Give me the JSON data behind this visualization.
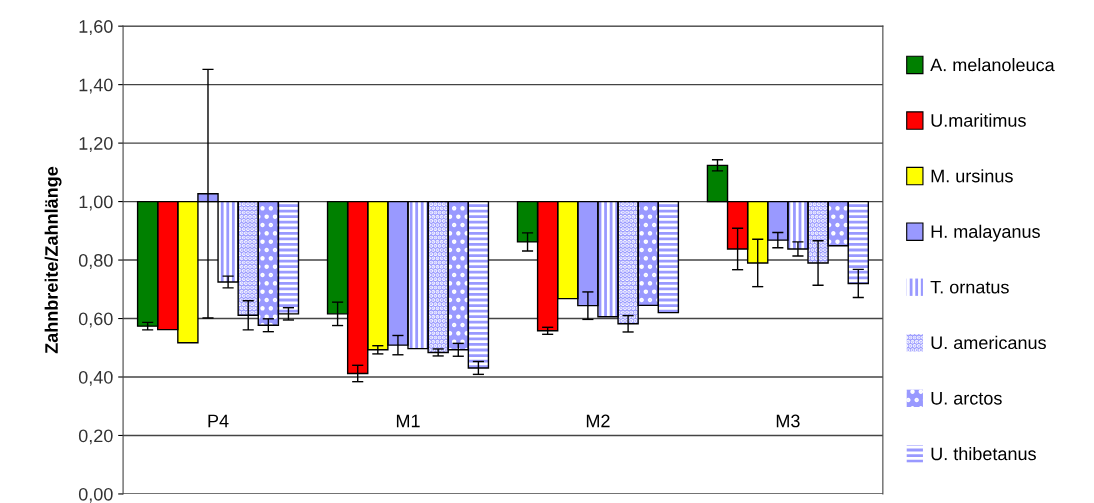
{
  "chart_data": {
    "type": "bar",
    "ylabel": "Zahnbreite/Zahnlänge",
    "categories": [
      "P4",
      "M1",
      "M2",
      "M3"
    ],
    "series": [
      {
        "name": "A. melanoleuca",
        "color": "#008000",
        "base": [
          1.0,
          1.0,
          1.0,
          1.0
        ],
        "values": [
          -0.426,
          -0.384,
          -0.138,
          0.124
        ],
        "errors": [
          0.013,
          0.04,
          0.031,
          0.019
        ]
      },
      {
        "name": "U.maritimus",
        "color": "#ff0000",
        "base": [
          1.0,
          1.0,
          1.0,
          1.0
        ],
        "values": [
          -0.438,
          -0.588,
          -0.442,
          -0.162
        ],
        "errors": [
          null,
          0.028,
          0.012,
          0.071
        ]
      },
      {
        "name": "M. ursinus",
        "color": "#ffff00",
        "base": [
          1.0,
          1.0,
          1.0,
          1.0
        ],
        "values": [
          -0.483,
          -0.507,
          -0.332,
          -0.21
        ],
        "errors": [
          null,
          0.014,
          null,
          0.081
        ]
      },
      {
        "name": "H. malayanus",
        "color": "#9999ff",
        "base": [
          1.0,
          1.0,
          1.0,
          1.0
        ],
        "values": [
          0.027,
          -0.491,
          -0.356,
          -0.132
        ],
        "errors": [
          0.425,
          0.033,
          0.047,
          0.026
        ]
      },
      {
        "name": "T. ornatus",
        "color": "#9999ff",
        "base": [
          1.0,
          1.0,
          1.0,
          1.0
        ],
        "values": [
          -0.275,
          -0.503,
          -0.394,
          -0.162
        ],
        "errors": [
          0.02,
          null,
          null,
          0.024
        ]
      },
      {
        "name": "U. americanus",
        "color": "#9999ff",
        "base": [
          1.0,
          1.0,
          1.0,
          1.0
        ],
        "values": [
          -0.389,
          -0.516,
          -0.418,
          -0.21
        ],
        "errors": [
          0.05,
          0.012,
          0.028,
          0.076
        ]
      },
      {
        "name": "U. arctos",
        "color": "#9999ff",
        "base": [
          1.0,
          1.0,
          1.0,
          1.0
        ],
        "values": [
          -0.423,
          -0.507,
          -0.355,
          -0.151
        ],
        "errors": [
          0.022,
          0.022,
          null,
          null
        ]
      },
      {
        "name": "U. thibetanus",
        "color": "#9999ff",
        "base": [
          1.0,
          1.0,
          1.0,
          1.0
        ],
        "values": [
          -0.384,
          -0.569,
          -0.38,
          -0.28
        ],
        "errors": [
          0.021,
          0.022,
          null,
          0.048
        ]
      }
    ],
    "ylim": [
      0.0,
      1.6
    ],
    "yticks": [
      {
        "value": 0.0,
        "label": "0,00"
      },
      {
        "value": 0.2,
        "label": "0,20"
      },
      {
        "value": 0.4,
        "label": "0,40"
      },
      {
        "value": 0.6,
        "label": "0,60"
      },
      {
        "value": 0.8,
        "label": "0,80"
      },
      {
        "value": 1.0,
        "label": "1,00"
      },
      {
        "value": 1.2,
        "label": "1,20"
      },
      {
        "value": 1.4,
        "label": "1,40"
      },
      {
        "value": 1.6,
        "label": "1,60"
      }
    ],
    "grid": "y",
    "legend": "right"
  }
}
